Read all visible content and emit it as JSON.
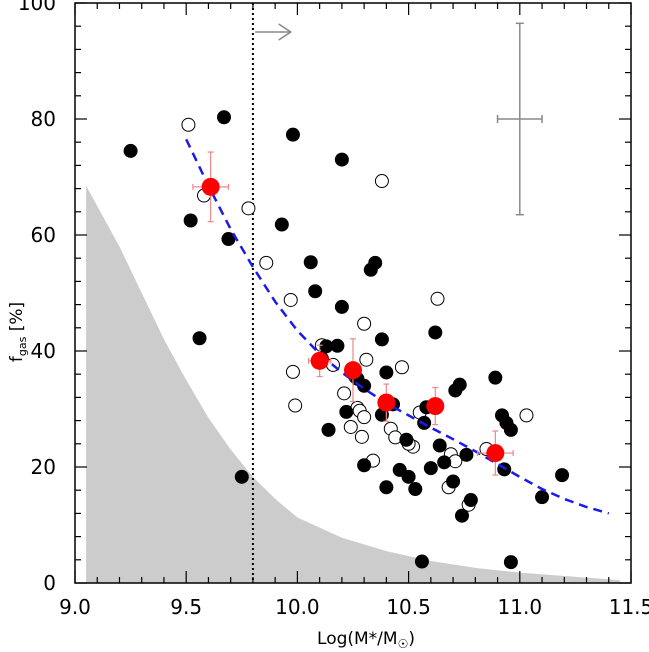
{
  "chart_data": {
    "type": "scatter",
    "title": "",
    "xlabel": "Log(M*/M",
    "xlabel_sub": "☉",
    "xlabel_end": ")",
    "ylabel": "f",
    "ylabel_sub": "gas",
    "ylabel_unit": " [%]",
    "xlim": [
      9.0,
      11.5
    ],
    "ylim": [
      0,
      100
    ],
    "xticks": [
      "9.0",
      "9.5",
      "10.0",
      "10.5",
      "11.0",
      "11.5"
    ],
    "yticks": [
      "0",
      "20",
      "40",
      "60",
      "80",
      "100"
    ],
    "mass_threshold_x": 9.8,
    "arrow": {
      "x_start": 9.81,
      "x_end": 9.97,
      "y": 95
    },
    "typical_error": {
      "x": 11.0,
      "y": 80,
      "xerr": 0.1,
      "yerr": 16.5
    },
    "detection_limit_region": [
      [
        9.05,
        68.5
      ],
      [
        9.1,
        65
      ],
      [
        9.2,
        58
      ],
      [
        9.3,
        50
      ],
      [
        9.4,
        42
      ],
      [
        9.5,
        35
      ],
      [
        9.6,
        28.5
      ],
      [
        9.7,
        23
      ],
      [
        9.8,
        18.3
      ],
      [
        9.9,
        14.5
      ],
      [
        10.0,
        11.3
      ],
      [
        10.2,
        7.8
      ],
      [
        10.4,
        5.5
      ],
      [
        10.6,
        3.8
      ],
      [
        10.8,
        2.6
      ],
      [
        11.0,
        1.8
      ],
      [
        11.2,
        1.2
      ],
      [
        11.45,
        0.5
      ]
    ],
    "fit_curve": [
      [
        9.5,
        76.5
      ],
      [
        9.6,
        68.5
      ],
      [
        9.7,
        61
      ],
      [
        9.8,
        54.5
      ],
      [
        9.9,
        48.5
      ],
      [
        10.0,
        43.5
      ],
      [
        10.1,
        39.5
      ],
      [
        10.2,
        36.3
      ],
      [
        10.3,
        33.5
      ],
      [
        10.4,
        31
      ],
      [
        10.5,
        28.9
      ],
      [
        10.6,
        26.8
      ],
      [
        10.7,
        24.8
      ],
      [
        10.8,
        22.7
      ],
      [
        10.9,
        20.5
      ],
      [
        11.0,
        18.3
      ],
      [
        11.1,
        16.2
      ],
      [
        11.2,
        14.5
      ],
      [
        11.3,
        13.1
      ],
      [
        11.4,
        12
      ]
    ],
    "series": [
      {
        "name": "filled",
        "points": [
          [
            9.25,
            74.5
          ],
          [
            9.52,
            62.5
          ],
          [
            9.56,
            42.2
          ],
          [
            9.67,
            80.3
          ],
          [
            9.69,
            59.3
          ],
          [
            9.75,
            18.3
          ],
          [
            9.93,
            61.8
          ],
          [
            9.98,
            77.3
          ],
          [
            10.06,
            55.3
          ],
          [
            10.08,
            50.3
          ],
          [
            10.11,
            38.7
          ],
          [
            10.13,
            40.8
          ],
          [
            10.14,
            26.4
          ],
          [
            10.18,
            40.9
          ],
          [
            10.2,
            73.0
          ],
          [
            10.2,
            47.6
          ],
          [
            10.22,
            29.5
          ],
          [
            10.27,
            35.2
          ],
          [
            10.3,
            34.0
          ],
          [
            10.3,
            20.3
          ],
          [
            10.33,
            54.0
          ],
          [
            10.35,
            55.2
          ],
          [
            10.38,
            42.0
          ],
          [
            10.38,
            29.0
          ],
          [
            10.4,
            36.3
          ],
          [
            10.4,
            16.5
          ],
          [
            10.43,
            30.8
          ],
          [
            10.46,
            19.5
          ],
          [
            10.49,
            24.7
          ],
          [
            10.5,
            18.3
          ],
          [
            10.53,
            16.2
          ],
          [
            10.57,
            27.6
          ],
          [
            10.58,
            30.3
          ],
          [
            10.6,
            19.8
          ],
          [
            10.62,
            43.2
          ],
          [
            10.64,
            23.7
          ],
          [
            10.66,
            20.8
          ],
          [
            10.7,
            17.5
          ],
          [
            10.71,
            33.2
          ],
          [
            10.73,
            34.2
          ],
          [
            10.74,
            11.6
          ],
          [
            10.76,
            22.1
          ],
          [
            10.78,
            14.3
          ],
          [
            10.89,
            35.4
          ],
          [
            10.92,
            28.9
          ],
          [
            10.93,
            19.6
          ],
          [
            10.94,
            27.6
          ],
          [
            10.96,
            26.4
          ],
          [
            11.1,
            14.8
          ],
          [
            11.19,
            18.6
          ],
          [
            10.56,
            3.7
          ],
          [
            10.96,
            3.6
          ]
        ]
      },
      {
        "name": "open",
        "points": [
          [
            9.51,
            79.0
          ],
          [
            9.58,
            66.8
          ],
          [
            9.78,
            64.6
          ],
          [
            9.86,
            55.2
          ],
          [
            9.97,
            48.8
          ],
          [
            9.98,
            36.4
          ],
          [
            9.99,
            30.6
          ],
          [
            10.16,
            37.6
          ],
          [
            10.21,
            32.7
          ],
          [
            10.24,
            26.9
          ],
          [
            10.26,
            35.6
          ],
          [
            10.27,
            30.2
          ],
          [
            10.28,
            29.7
          ],
          [
            10.3,
            28.6
          ],
          [
            10.3,
            44.7
          ],
          [
            10.31,
            38.5
          ],
          [
            10.34,
            21.1
          ],
          [
            10.38,
            69.3
          ],
          [
            10.42,
            26.6
          ],
          [
            10.44,
            25.1
          ],
          [
            10.47,
            37.2
          ],
          [
            10.52,
            23.5
          ],
          [
            10.55,
            29.4
          ],
          [
            10.63,
            49.0
          ],
          [
            10.68,
            16.5
          ],
          [
            10.69,
            22.2
          ],
          [
            10.71,
            21.0
          ],
          [
            10.77,
            13.5
          ],
          [
            10.85,
            23.1
          ],
          [
            11.03,
            28.9
          ],
          [
            10.5,
            24.0
          ],
          [
            10.29,
            25.2
          ],
          [
            10.11,
            41.0
          ]
        ]
      },
      {
        "name": "binned",
        "points": [
          [
            9.61,
            68.3,
            0.08,
            6.0
          ],
          [
            10.1,
            38.3,
            0.05,
            2.7
          ],
          [
            10.25,
            36.7,
            0.03,
            5.4
          ],
          [
            10.4,
            31.1,
            0.03,
            3.2
          ],
          [
            10.62,
            30.5,
            0.03,
            3.2
          ],
          [
            10.89,
            22.4,
            0.08,
            3.8
          ]
        ]
      }
    ],
    "colors": {
      "filled": "#000000",
      "open_stroke": "#000000",
      "binned": "#ff0000",
      "binned_error": "#ee8888",
      "fit": "#1a1aee",
      "region": "#cccccc",
      "typical_error": "#888888",
      "arrow": "#888888"
    }
  }
}
